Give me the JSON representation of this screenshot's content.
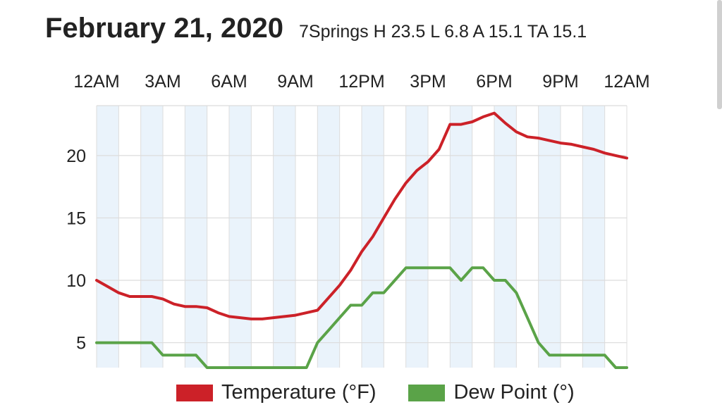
{
  "header": {
    "date": "February 21, 2020",
    "stats": "7Springs H 23.5 L 6.8 A 15.1 TA 15.1"
  },
  "chart_data": {
    "type": "line",
    "x_ticks": [
      "12AM",
      "3AM",
      "6AM",
      "9AM",
      "12PM",
      "3PM",
      "6PM",
      "9PM",
      "12AM"
    ],
    "y_ticks": [
      5,
      10,
      15,
      20
    ],
    "ylim": [
      3,
      24
    ],
    "xlim_hours": [
      0,
      24
    ],
    "grid": true,
    "legend_position": "bottom",
    "series": [
      {
        "name": "Temperature (°F)",
        "color": "#cc2128",
        "x_hours": [
          0,
          0.5,
          1,
          1.5,
          2,
          2.5,
          3,
          3.5,
          4,
          4.5,
          5,
          5.5,
          6,
          6.5,
          7,
          7.5,
          8,
          8.5,
          9,
          9.5,
          10,
          10.5,
          11,
          11.5,
          12,
          12.5,
          13,
          13.5,
          14,
          14.5,
          15,
          15.5,
          16,
          16.5,
          17,
          17.5,
          18,
          18.5,
          19,
          19.5,
          20,
          20.5,
          21,
          21.5,
          22,
          22.5,
          23,
          23.5,
          24
        ],
        "values": [
          10.0,
          9.5,
          9.0,
          8.7,
          8.7,
          8.7,
          8.5,
          8.1,
          7.9,
          7.9,
          7.8,
          7.4,
          7.1,
          7.0,
          6.9,
          6.9,
          7.0,
          7.1,
          7.2,
          7.4,
          7.6,
          8.6,
          9.6,
          10.8,
          12.3,
          13.5,
          15.0,
          16.5,
          17.8,
          18.8,
          19.5,
          20.5,
          22.5,
          22.5,
          22.7,
          23.1,
          23.4,
          22.6,
          21.9,
          21.5,
          21.4,
          21.2,
          21.0,
          20.9,
          20.7,
          20.5,
          20.2,
          20.0,
          19.8
        ]
      },
      {
        "name": "Dew Point (°)",
        "color": "#5aa348",
        "x_hours": [
          0,
          0.5,
          1,
          1.5,
          2,
          2.5,
          3,
          3.5,
          4,
          4.5,
          5,
          5.5,
          6,
          6.5,
          7,
          7.5,
          8,
          8.5,
          9,
          9.5,
          10,
          10.5,
          11,
          11.5,
          12,
          12.5,
          13,
          13.5,
          14,
          14.5,
          15,
          15.5,
          16,
          16.5,
          17,
          17.5,
          18,
          18.5,
          19,
          19.5,
          20,
          20.5,
          21,
          21.5,
          22,
          22.5,
          23,
          23.5,
          24
        ],
        "values": [
          5,
          5,
          5,
          5,
          5,
          5,
          4,
          4,
          4,
          4,
          3,
          3,
          3,
          3,
          3,
          3,
          3,
          3,
          3,
          3,
          5,
          6,
          7,
          8,
          8,
          9,
          9,
          10,
          11,
          11,
          11,
          11,
          11,
          10,
          11,
          11,
          10,
          10,
          9,
          7,
          5,
          4,
          4,
          4,
          4,
          4,
          4,
          3,
          3
        ]
      }
    ]
  },
  "legend": {
    "temperature": {
      "label": "Temperature (°F)",
      "color": "#cc2128"
    },
    "dewpoint": {
      "label": "Dew Point (°)",
      "color": "#5aa348"
    }
  }
}
